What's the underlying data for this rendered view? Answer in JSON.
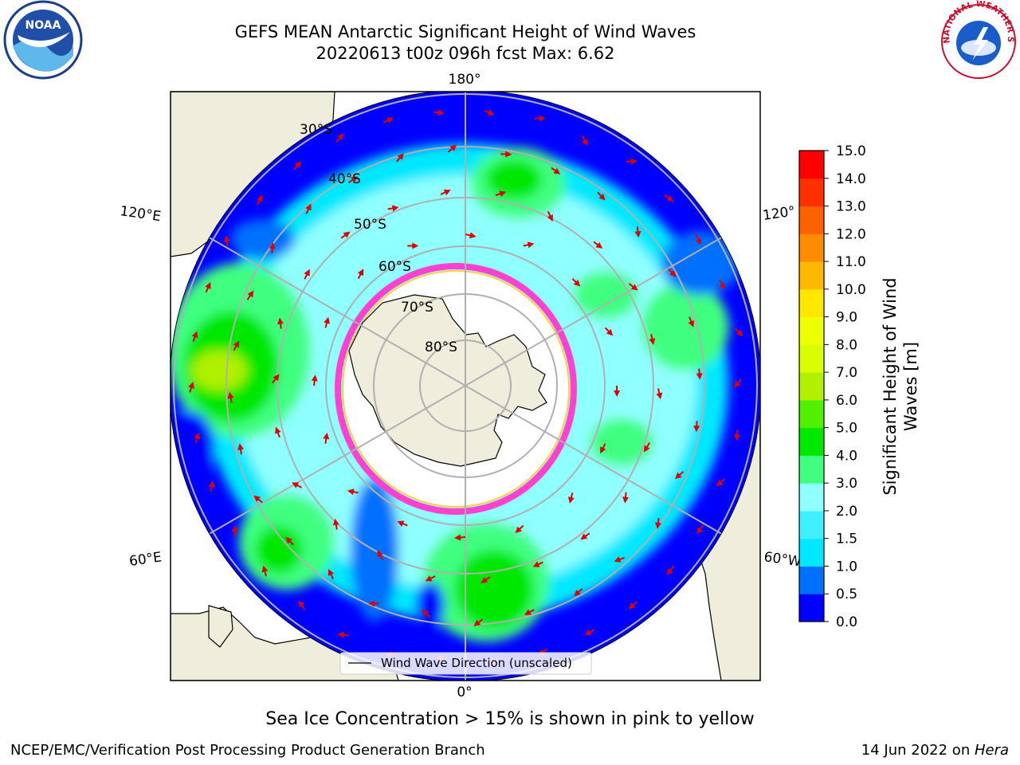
{
  "title_line1": "GEFS MEAN Antarctic Significant Height of Wind Waves",
  "title_line2": "20220613 t00z 096h fcst   Max: 6.62",
  "longitude_labels": {
    "top": "180°",
    "bottom": "0°",
    "upper_left": "120°E",
    "lower_left": "60°E",
    "upper_right": "120°",
    "lower_right": "60°W"
  },
  "latitude_labels": [
    "30°S",
    "40°S",
    "50°S",
    "60°S",
    "70°S",
    "80°S"
  ],
  "legend_label": "Wind Wave Direction (unscaled)",
  "colorbar": {
    "label_line1": "Significant Height of Wind",
    "label_line2": "Waves [m]",
    "ticks": [
      "0.0",
      "0.5",
      "1.0",
      "1.5",
      "2.0",
      "3.0",
      "4.0",
      "5.0",
      "6.0",
      "7.0",
      "8.0",
      "9.0",
      "10.0",
      "11.0",
      "12.0",
      "13.0",
      "14.0",
      "15.0"
    ],
    "colors": [
      "#0000ff",
      "#0070ff",
      "#00e8ff",
      "#40f0ff",
      "#90ffff",
      "#40ff80",
      "#00e800",
      "#50f000",
      "#b0f000",
      "#d8ff00",
      "#f0ff00",
      "#ffe800",
      "#ffb800",
      "#ff8c00",
      "#ff6000",
      "#ff3000",
      "#ff0000"
    ]
  },
  "sea_ice_note": "Sea Ice Concentration > 15% is shown in pink to yellow",
  "footer_left": "NCEP/EMC/Verification Post Processing Product Generation Branch",
  "footer_right_date": "14 Jun 2022 on ",
  "footer_right_system": "Hera",
  "logos": {
    "noaa": "NOAA",
    "nws": "NATIONAL WEATHER SERVICE"
  }
}
